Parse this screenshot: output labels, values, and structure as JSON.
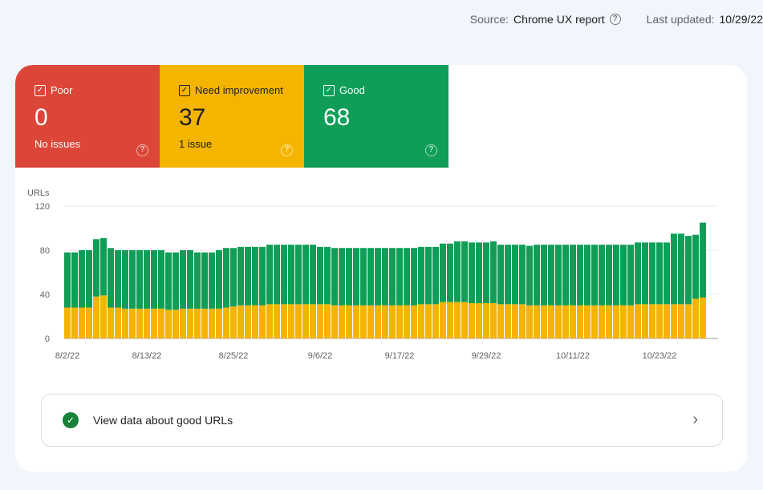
{
  "header": {
    "source_label": "Source:",
    "source_value": "Chrome UX report",
    "updated_label": "Last updated:",
    "updated_value": "10/29/22"
  },
  "tiles": [
    {
      "label": "Poor",
      "value": "0",
      "sub": "No issues",
      "color": "#dc4638",
      "checked": true
    },
    {
      "label": "Need improvement",
      "value": "37",
      "sub": "1 issue",
      "color": "#f4b400",
      "checked": true
    },
    {
      "label": "Good",
      "value": "68",
      "sub": "",
      "color": "#0f9d58",
      "checked": true
    }
  ],
  "chart_data": {
    "type": "bar",
    "stacked": true,
    "ylabel": "URLs",
    "ylim": [
      0,
      120
    ],
    "yticks": [
      0,
      40,
      80,
      120
    ],
    "grid": true,
    "x_start": "8/2/22",
    "x_end": "10/29/22",
    "x_tick_labels": [
      {
        "label": "8/2/22",
        "index": 0
      },
      {
        "label": "8/13/22",
        "index": 11
      },
      {
        "label": "8/25/22",
        "index": 23
      },
      {
        "label": "9/6/22",
        "index": 35
      },
      {
        "label": "9/17/22",
        "index": 46
      },
      {
        "label": "9/29/22",
        "index": 58
      },
      {
        "label": "10/11/22",
        "index": 70
      },
      {
        "label": "10/23/22",
        "index": 82
      }
    ],
    "series": [
      {
        "name": "Need improvement",
        "color": "#f4b400",
        "values": [
          28,
          28,
          28,
          28,
          38,
          39,
          28,
          28,
          27,
          27,
          27,
          27,
          27,
          27,
          26,
          26,
          27,
          27,
          27,
          27,
          27,
          27,
          28,
          29,
          30,
          30,
          30,
          30,
          31,
          31,
          31,
          31,
          31,
          31,
          31,
          31,
          31,
          30,
          30,
          30,
          30,
          30,
          30,
          30,
          30,
          30,
          30,
          30,
          30,
          31,
          31,
          31,
          33,
          33,
          33,
          33,
          32,
          32,
          32,
          32,
          31,
          31,
          31,
          31,
          30,
          30,
          30,
          30,
          30,
          30,
          30,
          30,
          30,
          30,
          30,
          30,
          30,
          30,
          30,
          31,
          31,
          31,
          31,
          31,
          31,
          31,
          31,
          36,
          37
        ]
      },
      {
        "name": "Good",
        "color": "#0f9d58",
        "values": [
          50,
          50,
          52,
          52,
          52,
          52,
          54,
          52,
          53,
          53,
          53,
          53,
          53,
          53,
          52,
          52,
          53,
          53,
          51,
          51,
          51,
          53,
          54,
          53,
          53,
          53,
          53,
          53,
          54,
          54,
          54,
          54,
          54,
          54,
          54,
          52,
          52,
          52,
          52,
          52,
          52,
          52,
          52,
          52,
          52,
          52,
          52,
          52,
          52,
          52,
          52,
          52,
          53,
          53,
          55,
          55,
          55,
          55,
          55,
          56,
          54,
          54,
          54,
          54,
          54,
          55,
          55,
          55,
          55,
          55,
          55,
          55,
          55,
          55,
          55,
          55,
          55,
          55,
          55,
          56,
          56,
          56,
          56,
          56,
          64,
          64,
          62,
          58,
          68
        ]
      }
    ]
  },
  "cta": {
    "label": "View data about good URLs"
  }
}
